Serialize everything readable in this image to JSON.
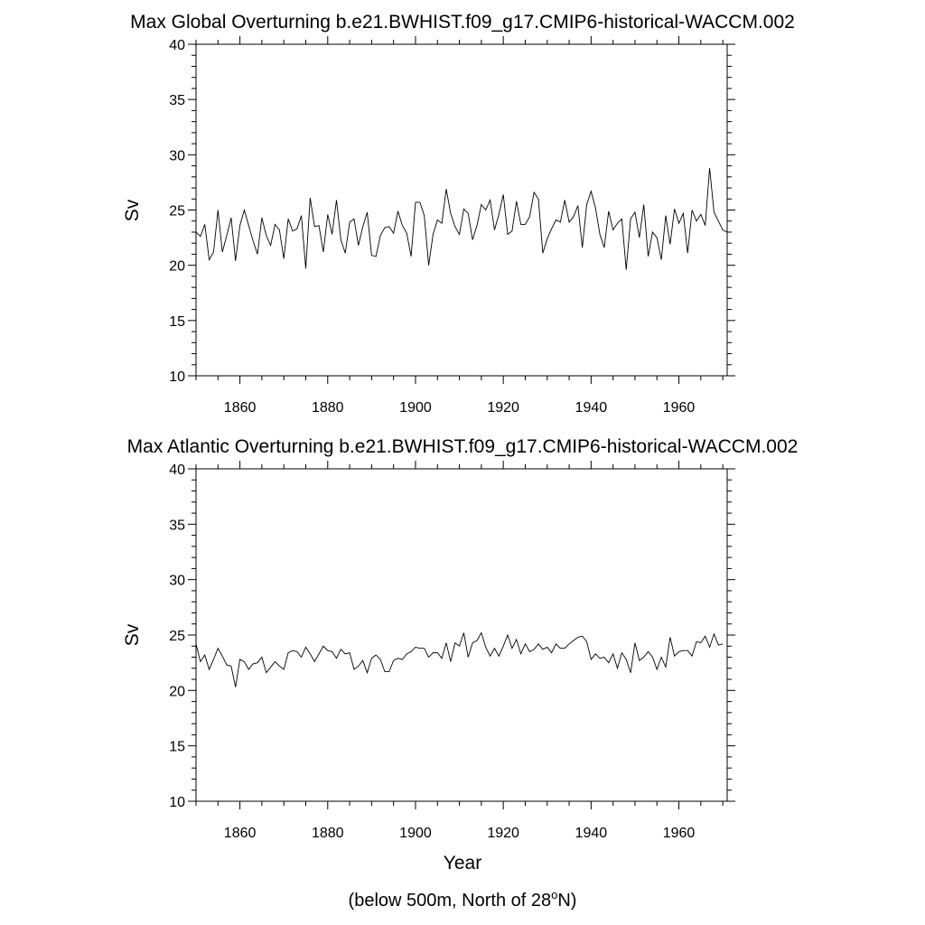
{
  "chart_data": [
    {
      "type": "line",
      "title": "Max Global Overturning b.e21.BWHIST.f09_g17.CMIP6-historical-WACCM.002",
      "xlabel": "",
      "ylabel": "Sv",
      "xlim": [
        1850,
        1971
      ],
      "ylim": [
        10,
        40
      ],
      "xticks": [
        1860,
        1880,
        1900,
        1920,
        1940,
        1960
      ],
      "yticks": [
        10,
        15,
        20,
        25,
        30,
        35,
        40
      ],
      "grid": false,
      "series": [
        {
          "x": [
            1850,
            1851,
            1852,
            1853,
            1854,
            1855,
            1856,
            1857,
            1858,
            1859,
            1860,
            1861,
            1862,
            1863,
            1864,
            1865,
            1866,
            1867,
            1868,
            1869,
            1870,
            1871,
            1872,
            1873,
            1874,
            1875,
            1876,
            1877,
            1878,
            1879,
            1880,
            1881,
            1882,
            1883,
            1884,
            1885,
            1886,
            1887,
            1888,
            1889,
            1890,
            1891,
            1892,
            1893,
            1894,
            1895,
            1896,
            1897,
            1898,
            1899,
            1900,
            1901,
            1902,
            1903,
            1904,
            1905,
            1906,
            1907,
            1908,
            1909,
            1910,
            1911,
            1912,
            1913,
            1914,
            1915,
            1916,
            1917,
            1918,
            1919,
            1920,
            1921,
            1922,
            1923,
            1924,
            1925,
            1926,
            1927,
            1928,
            1929,
            1930,
            1931,
            1932,
            1933,
            1934,
            1935,
            1936,
            1937,
            1938,
            1939,
            1940,
            1941,
            1942,
            1943,
            1944,
            1945,
            1946,
            1947,
            1948,
            1949,
            1950,
            1951,
            1952,
            1953,
            1954,
            1955,
            1956,
            1957,
            1958,
            1959,
            1960,
            1961,
            1962,
            1963,
            1964,
            1965,
            1966,
            1967,
            1968,
            1969,
            1970,
            1971
          ],
          "values": [
            23.0,
            22.6,
            23.7,
            20.5,
            21.2,
            25.0,
            21.2,
            22.7,
            24.3,
            20.4,
            23.6,
            25.0,
            23.6,
            22.2,
            21.0,
            24.3,
            22.7,
            21.8,
            23.7,
            23.2,
            20.6,
            24.2,
            23.1,
            23.3,
            24.5,
            19.7,
            26.1,
            23.5,
            23.6,
            21.2,
            24.6,
            22.8,
            25.9,
            22.3,
            21.1,
            23.9,
            24.2,
            21.8,
            23.5,
            24.8,
            20.9,
            20.8,
            22.7,
            23.4,
            23.5,
            22.9,
            24.9,
            23.6,
            22.9,
            20.8,
            25.7,
            25.7,
            24.5,
            20.0,
            22.8,
            24.1,
            23.8,
            26.9,
            24.7,
            23.5,
            22.8,
            25.1,
            24.7,
            22.3,
            23.6,
            25.5,
            25.0,
            25.9,
            23.2,
            24.6,
            26.4,
            22.8,
            23.1,
            25.8,
            23.7,
            23.7,
            24.4,
            26.6,
            26.0,
            21.1,
            22.4,
            23.3,
            24.1,
            23.9,
            25.9,
            23.9,
            24.4,
            25.4,
            21.6,
            25.5,
            26.7,
            25.2,
            22.8,
            21.6,
            24.9,
            23.2,
            23.8,
            24.2,
            19.6,
            24.2,
            24.8,
            22.5,
            25.5,
            20.8,
            23.0,
            22.5,
            20.5,
            24.5,
            21.9,
            25.1,
            23.8,
            24.7,
            21.1,
            25.0,
            24.0,
            24.6,
            23.6,
            28.8,
            24.8,
            24.0,
            23.2,
            23.0
          ]
        }
      ]
    },
    {
      "type": "line",
      "title": "Max Atlantic Overturning b.e21.BWHIST.f09_g17.CMIP6-historical-WACCM.002",
      "xlabel": "Year",
      "ylabel": "Sv",
      "xlim": [
        1850,
        1971
      ],
      "ylim": [
        10,
        40
      ],
      "xticks": [
        1860,
        1880,
        1900,
        1920,
        1940,
        1960
      ],
      "yticks": [
        10,
        15,
        20,
        25,
        30,
        35,
        40
      ],
      "grid": false,
      "series": [
        {
          "x": [
            1850,
            1851,
            1852,
            1853,
            1854,
            1855,
            1856,
            1857,
            1858,
            1859,
            1860,
            1861,
            1862,
            1863,
            1864,
            1865,
            1866,
            1867,
            1868,
            1869,
            1870,
            1871,
            1872,
            1873,
            1874,
            1875,
            1876,
            1877,
            1878,
            1879,
            1880,
            1881,
            1882,
            1883,
            1884,
            1885,
            1886,
            1887,
            1888,
            1889,
            1890,
            1891,
            1892,
            1893,
            1894,
            1895,
            1896,
            1897,
            1898,
            1899,
            1900,
            1901,
            1902,
            1903,
            1904,
            1905,
            1906,
            1907,
            1908,
            1909,
            1910,
            1911,
            1912,
            1913,
            1914,
            1915,
            1916,
            1917,
            1918,
            1919,
            1920,
            1921,
            1922,
            1923,
            1924,
            1925,
            1926,
            1927,
            1928,
            1929,
            1930,
            1931,
            1932,
            1933,
            1934,
            1935,
            1936,
            1937,
            1938,
            1939,
            1940,
            1941,
            1942,
            1943,
            1944,
            1945,
            1946,
            1947,
            1948,
            1949,
            1950,
            1951,
            1952,
            1953,
            1954,
            1955,
            1956,
            1957,
            1958,
            1959,
            1960,
            1961,
            1962,
            1963,
            1964,
            1965,
            1966,
            1967,
            1968,
            1969,
            1970
          ],
          "values": [
            24.2,
            22.6,
            23.2,
            21.9,
            22.8,
            23.8,
            23.1,
            22.3,
            22.2,
            20.3,
            22.8,
            22.6,
            21.9,
            22.4,
            22.5,
            23.0,
            21.6,
            22.1,
            22.6,
            22.2,
            21.9,
            23.4,
            23.6,
            23.5,
            23.0,
            23.9,
            23.3,
            22.6,
            23.3,
            24.0,
            23.6,
            23.5,
            22.9,
            23.7,
            23.3,
            23.4,
            21.9,
            22.2,
            22.7,
            21.6,
            22.9,
            23.2,
            22.8,
            21.7,
            21.7,
            22.7,
            22.9,
            22.8,
            23.3,
            23.5,
            23.9,
            23.8,
            23.8,
            23.0,
            23.4,
            23.4,
            22.9,
            24.3,
            22.6,
            24.3,
            24.0,
            25.2,
            23.0,
            24.3,
            24.5,
            25.2,
            23.9,
            23.1,
            23.8,
            23.1,
            24.0,
            25.0,
            23.8,
            24.6,
            23.3,
            24.2,
            23.5,
            23.7,
            24.2,
            23.7,
            23.9,
            23.4,
            24.2,
            23.8,
            23.8,
            24.2,
            24.5,
            24.8,
            24.9,
            24.4,
            22.8,
            23.3,
            22.9,
            23.0,
            22.5,
            23.3,
            22.0,
            23.4,
            22.8,
            21.6,
            24.3,
            22.7,
            23.0,
            23.5,
            23.0,
            21.9,
            23.0,
            22.1,
            24.8,
            23.1,
            23.5,
            23.6,
            23.6,
            23.1,
            24.4,
            24.3,
            24.9,
            23.9,
            25.1,
            24.1,
            24.2
          ]
        }
      ]
    }
  ],
  "footnote": {
    "prefix": "(below 500m, North of 28",
    "superscript": "o",
    "suffix": "N)"
  }
}
